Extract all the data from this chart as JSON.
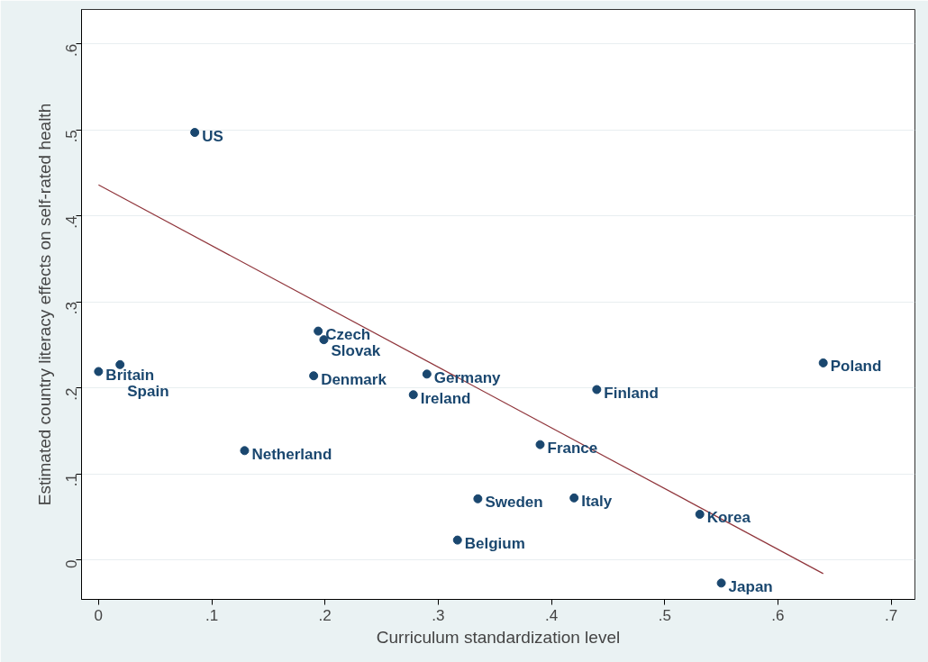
{
  "chart_data": {
    "type": "scatter",
    "xlabel": "Curriculum standardization level",
    "ylabel": "Estimated country literacy effects on self-rated health",
    "xlim": [
      -0.015,
      0.721
    ],
    "ylim": [
      -0.046,
      0.64
    ],
    "xticks": [
      0,
      {
        "value": 0.1,
        "label": ".1"
      },
      {
        "value": 0.2,
        "label": ".2"
      },
      {
        "value": 0.3,
        "label": ".3"
      },
      {
        "value": 0.4,
        "label": ".4"
      },
      {
        "value": 0.5,
        "label": ".5"
      },
      {
        "value": 0.6,
        "label": ".6"
      },
      {
        "value": 0.7,
        "label": ".7"
      }
    ],
    "yticks": [
      0,
      {
        "value": 0.1,
        "label": ".1"
      },
      {
        "value": 0.2,
        "label": ".2"
      },
      {
        "value": 0.3,
        "label": ".3"
      },
      {
        "value": 0.4,
        "label": ".4"
      },
      {
        "value": 0.5,
        "label": ".5"
      },
      {
        "value": 0.6,
        "label": ".6"
      }
    ],
    "grid": "y",
    "series": [
      {
        "marker": "circle",
        "color": "#1a476f",
        "x": [
          0,
          0.019,
          0.085,
          0.129,
          0.19,
          0.194,
          0.199,
          0.278,
          0.29,
          0.317,
          0.335,
          0.39,
          0.42,
          0.44,
          0.531,
          0.55,
          0.64
        ],
        "values": [
          0.219,
          0.227,
          0.497,
          0.127,
          0.214,
          0.266,
          0.256,
          0.192,
          0.216,
          0.023,
          0.071,
          0.134,
          0.072,
          0.198,
          0.053,
          -0.027,
          0.229
        ]
      },
      {
        "type": "line",
        "color": "#90353b",
        "x": [
          0,
          0.64
        ],
        "values": [
          0.436,
          -0.016
        ]
      }
    ],
    "annotations": [
      {
        "text": "Britain",
        "x": 0,
        "y": 0.219
      },
      {
        "text": "Spain",
        "x": 0.019,
        "y": 0.227
      },
      {
        "text": "US",
        "x": 0.085,
        "y": 0.497
      },
      {
        "text": "Netherland",
        "x": 0.129,
        "y": 0.127
      },
      {
        "text": "Denmark",
        "x": 0.19,
        "y": 0.214
      },
      {
        "text": "Czech",
        "x": 0.194,
        "y": 0.266
      },
      {
        "text": "Slovak",
        "x": 0.199,
        "y": 0.256
      },
      {
        "text": "Ireland",
        "x": 0.278,
        "y": 0.192
      },
      {
        "text": "Germany",
        "x": 0.29,
        "y": 0.216
      },
      {
        "text": "Belgium",
        "x": 0.317,
        "y": 0.023
      },
      {
        "text": "Sweden",
        "x": 0.335,
        "y": 0.071
      },
      {
        "text": "France",
        "x": 0.39,
        "y": 0.134
      },
      {
        "text": "Italy",
        "x": 0.42,
        "y": 0.072
      },
      {
        "text": "Finland",
        "x": 0.44,
        "y": 0.198
      },
      {
        "text": "Korea",
        "x": 0.531,
        "y": 0.053
      },
      {
        "text": "Japan",
        "x": 0.55,
        "y": -0.027
      },
      {
        "text": "Poland",
        "x": 0.64,
        "y": 0.229
      }
    ]
  }
}
